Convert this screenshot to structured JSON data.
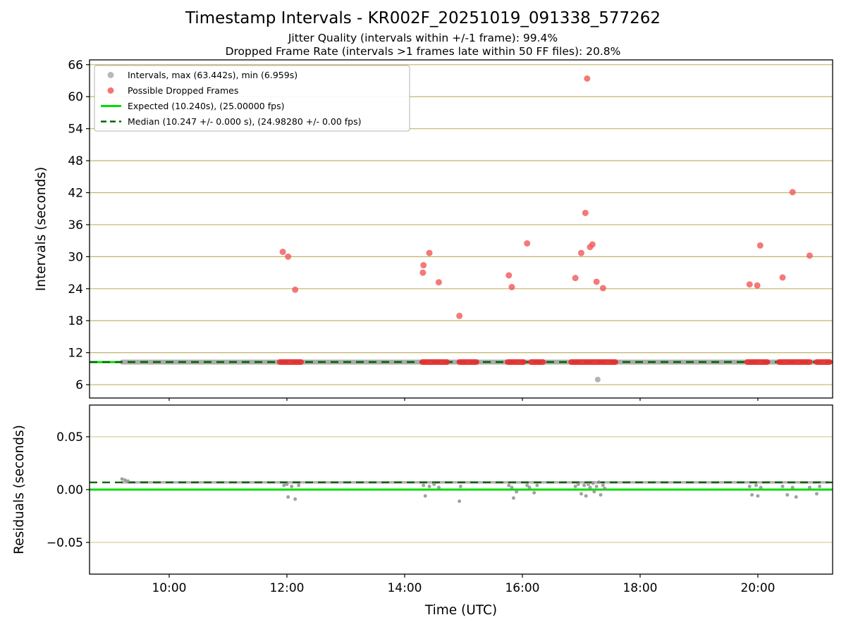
{
  "title": "Timestamp Intervals - KR002F_20251019_091338_577262",
  "subtitles": {
    "jitter": "Jitter Quality (intervals within +/-1 frame): 99.4%",
    "dropped": "Dropped Frame Rate (intervals >1 frames late within 50 FF files): 20.8%"
  },
  "chart_data": {
    "type": "scatter",
    "x_axis": {
      "label": "Time (UTC)",
      "range": [
        8.647,
        21.27
      ],
      "ticks": [
        {
          "value": 10,
          "label": "10:00"
        },
        {
          "value": 12,
          "label": "12:00"
        },
        {
          "value": 14,
          "label": "14:00"
        },
        {
          "value": 16,
          "label": "16:00"
        },
        {
          "value": 18,
          "label": "18:00"
        },
        {
          "value": 20,
          "label": "20:00"
        }
      ]
    },
    "top_plot": {
      "ylabel": "Intervals (seconds)",
      "ylim": [
        3.5,
        66.9
      ],
      "yticks": [
        66,
        60,
        54,
        48,
        42,
        36,
        30,
        24,
        18,
        12,
        6
      ],
      "expected": 10.24,
      "median": 10.247,
      "max_interval": 63.442,
      "min_interval": 6.959,
      "baseline": {
        "value": 10.24,
        "start": 9.2,
        "end": 21.2
      },
      "dropped_segments": [
        [
          11.88,
          12.24
        ],
        [
          14.3,
          14.72
        ],
        [
          14.93,
          15.22
        ],
        [
          15.75,
          16.02
        ],
        [
          16.15,
          16.35
        ],
        [
          16.83,
          17.58
        ],
        [
          19.82,
          20.16
        ],
        [
          20.36,
          20.88
        ],
        [
          21.0,
          21.22
        ]
      ],
      "dropped_points": [
        [
          11.93,
          30.9
        ],
        [
          12.02,
          30.0
        ],
        [
          12.14,
          23.8
        ],
        [
          14.31,
          27.0
        ],
        [
          14.32,
          28.4
        ],
        [
          14.42,
          30.7
        ],
        [
          14.58,
          25.2
        ],
        [
          14.93,
          18.9
        ],
        [
          15.77,
          26.5
        ],
        [
          15.82,
          24.3
        ],
        [
          16.08,
          32.5
        ],
        [
          16.9,
          26.0
        ],
        [
          17.0,
          30.7
        ],
        [
          17.07,
          38.2
        ],
        [
          17.1,
          63.4
        ],
        [
          17.15,
          31.8
        ],
        [
          17.19,
          32.3
        ],
        [
          17.26,
          25.3
        ],
        [
          17.37,
          24.1
        ],
        [
          19.86,
          24.8
        ],
        [
          19.99,
          24.6
        ],
        [
          20.04,
          32.1
        ],
        [
          20.42,
          26.1
        ],
        [
          20.59,
          42.1
        ],
        [
          20.88,
          30.2
        ]
      ],
      "gray_outliers": [
        [
          17.28,
          6.96
        ]
      ]
    },
    "bottom_plot": {
      "ylabel": "Residuals (seconds)",
      "ylim": [
        -0.08,
        0.08
      ],
      "yticks": [
        {
          "value": 0.05,
          "label": "0.05"
        },
        {
          "value": 0.0,
          "label": "0.00"
        },
        {
          "value": -0.05,
          "label": "−0.05"
        }
      ],
      "expected": 0.0,
      "median": 0.0068,
      "baseline": {
        "value": 0.0068,
        "start": 9.2,
        "end": 21.2
      },
      "points": [
        [
          9.2,
          0.01
        ],
        [
          9.25,
          0.009
        ],
        [
          9.3,
          0.008
        ],
        [
          11.95,
          0.004
        ],
        [
          12.0,
          0.005
        ],
        [
          12.02,
          -0.007
        ],
        [
          12.08,
          0.003
        ],
        [
          12.14,
          -0.009
        ],
        [
          12.2,
          0.004
        ],
        [
          14.32,
          0.004
        ],
        [
          14.35,
          -0.006
        ],
        [
          14.42,
          0.003
        ],
        [
          14.5,
          0.005
        ],
        [
          14.58,
          0.002
        ],
        [
          14.93,
          -0.011
        ],
        [
          14.95,
          0.003
        ],
        [
          15.77,
          0.004
        ],
        [
          15.82,
          0.002
        ],
        [
          15.85,
          -0.008
        ],
        [
          15.9,
          -0.002
        ],
        [
          16.08,
          0.004
        ],
        [
          16.12,
          0.002
        ],
        [
          16.2,
          -0.003
        ],
        [
          16.25,
          0.004
        ],
        [
          16.9,
          0.003
        ],
        [
          16.95,
          0.005
        ],
        [
          17.0,
          -0.004
        ],
        [
          17.05,
          0.004
        ],
        [
          17.08,
          -0.006
        ],
        [
          17.12,
          0.005
        ],
        [
          17.15,
          0.002
        ],
        [
          17.2,
          0.006
        ],
        [
          17.22,
          -0.002
        ],
        [
          17.26,
          0.003
        ],
        [
          17.3,
          0.007
        ],
        [
          17.33,
          -0.005
        ],
        [
          17.37,
          0.004
        ],
        [
          17.4,
          0.001
        ],
        [
          19.86,
          0.003
        ],
        [
          19.9,
          -0.005
        ],
        [
          19.97,
          0.004
        ],
        [
          20.0,
          -0.006
        ],
        [
          20.05,
          0.002
        ],
        [
          20.42,
          0.003
        ],
        [
          20.5,
          -0.005
        ],
        [
          20.59,
          0.002
        ],
        [
          20.65,
          -0.007
        ],
        [
          20.88,
          0.002
        ],
        [
          21.0,
          -0.004
        ],
        [
          21.05,
          0.003
        ]
      ]
    },
    "legend": [
      {
        "marker": "dot",
        "color": "#ababab",
        "label": "Intervals, max (63.442s), min (6.959s)"
      },
      {
        "marker": "dot",
        "color": "#f25c5c",
        "label": "Possible Dropped Frames"
      },
      {
        "marker": "line",
        "color": "#00dd00",
        "label": "Expected (10.240s), (25.00000 fps)"
      },
      {
        "marker": "dashed",
        "color": "#006400",
        "label": "Median (10.247 +/- 0.000 s), (24.98280 +/- 0.00 fps)"
      }
    ],
    "colors": {
      "grid": "#c2b46a",
      "expected": "#00dd00",
      "median": "#006400",
      "interval": "#ababab",
      "dropped": "#e83030",
      "dropped_point": "#f25c5c",
      "axis": "#000000"
    }
  }
}
